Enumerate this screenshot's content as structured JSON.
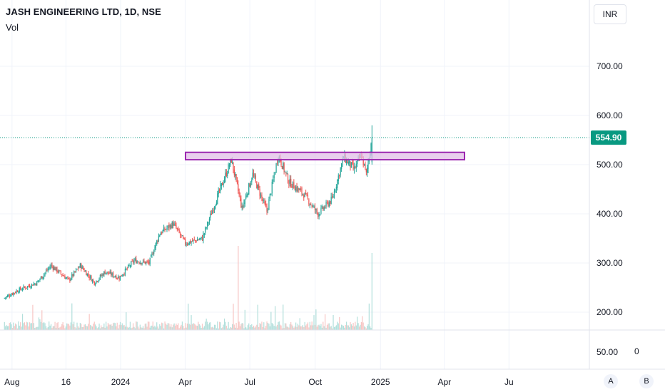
{
  "header": {
    "title": "JASH ENGINEERING LTD, 1D, NSE",
    "volume_label": "Vol",
    "currency": "INR"
  },
  "footer": {
    "btn_a": "A",
    "btn_b": "B",
    "volume_pane_zero": "0"
  },
  "colors": {
    "up": "#26a69a",
    "down": "#ef5350",
    "up_vol": "#b2dfdb",
    "down_vol": "#f7c6c4",
    "zone_fill": "#e1bee7",
    "zone_stroke": "#9c27b0",
    "last_price": "#089981"
  },
  "chart_data": {
    "type": "candlestick",
    "title": "JASH ENGINEERING LTD, 1D, NSE",
    "x_ticks": [
      "Aug",
      "16",
      "2024",
      "Apr",
      "Jul",
      "Oct",
      "2025",
      "Apr",
      "Ju"
    ],
    "price_ticks": [
      "700.00",
      "600.00",
      "500.00",
      "400.00",
      "300.00",
      "200.00"
    ],
    "volume_tick": "50.00",
    "ylim": [
      150,
      760
    ],
    "last_price": "554.90",
    "resistance_zone": {
      "low": 510,
      "high": 525,
      "start": "2024-02",
      "end": "2025-01"
    },
    "price_path": [
      {
        "t": "2023-07-20",
        "close": 228
      },
      {
        "t": "2023-08-10",
        "close": 245
      },
      {
        "t": "2023-09-05",
        "close": 260
      },
      {
        "t": "2023-09-25",
        "close": 295
      },
      {
        "t": "2023-10-20",
        "close": 265
      },
      {
        "t": "2023-11-05",
        "close": 295
      },
      {
        "t": "2023-11-25",
        "close": 260
      },
      {
        "t": "2023-12-10",
        "close": 282
      },
      {
        "t": "2023-12-30",
        "close": 270
      },
      {
        "t": "2024-01-20",
        "close": 305
      },
      {
        "t": "2024-02-10",
        "close": 300
      },
      {
        "t": "2024-02-25",
        "close": 360
      },
      {
        "t": "2024-03-15",
        "close": 380
      },
      {
        "t": "2024-04-01",
        "close": 340
      },
      {
        "t": "2024-04-25",
        "close": 350
      },
      {
        "t": "2024-05-15",
        "close": 430
      },
      {
        "t": "2024-06-05",
        "close": 510
      },
      {
        "t": "2024-06-20",
        "close": 410
      },
      {
        "t": "2024-07-05",
        "close": 480
      },
      {
        "t": "2024-07-25",
        "close": 405
      },
      {
        "t": "2024-08-10",
        "close": 520
      },
      {
        "t": "2024-08-25",
        "close": 465
      },
      {
        "t": "2024-09-15",
        "close": 440
      },
      {
        "t": "2024-10-05",
        "close": 400
      },
      {
        "t": "2024-10-25",
        "close": 430
      },
      {
        "t": "2024-11-10",
        "close": 515
      },
      {
        "t": "2024-11-25",
        "close": 490
      },
      {
        "t": "2024-12-05",
        "close": 520
      },
      {
        "t": "2024-12-12",
        "close": 480
      },
      {
        "t": "2024-12-20",
        "close": 555
      }
    ]
  }
}
